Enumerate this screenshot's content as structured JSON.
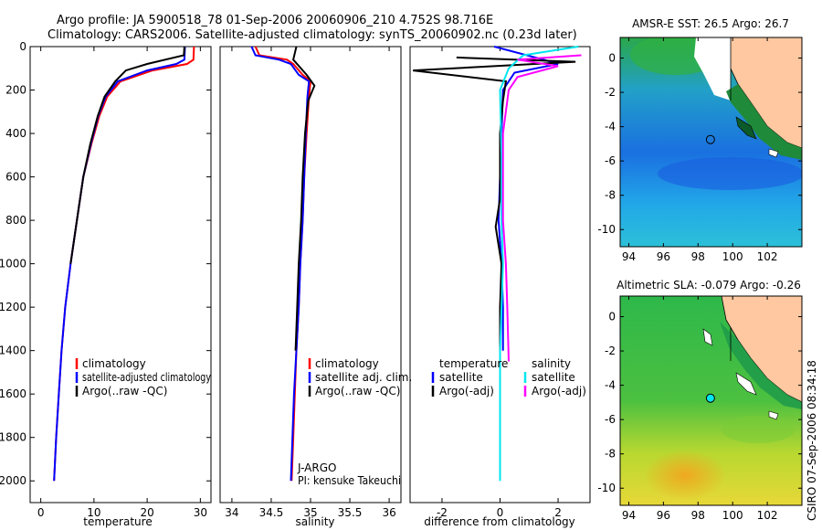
{
  "title": {
    "line1": "Argo profile: JA 5900518_78 01-Sep-2006 20060906_210 4.752S 98.716E",
    "line2": "Climatology: CARS2006. Satellite-adjusted climatology: synTS_20060902.nc (0.23d later)"
  },
  "colors": {
    "clim": "#ff0000",
    "sat": "#0000ff",
    "argo": "#000000",
    "cyan": "#00e5ee",
    "magenta": "#ff00ff",
    "land": "#ffc8a0"
  },
  "chart_data": [
    {
      "type": "line",
      "id": "temperature",
      "xlabel": "temperature",
      "ylabel": "",
      "xlim": [
        -2,
        32
      ],
      "ylim": [
        2100,
        0
      ],
      "xticks": [
        0,
        10,
        20,
        30
      ],
      "yticks": [
        0,
        200,
        400,
        600,
        800,
        1000,
        1200,
        1400,
        1600,
        1800,
        2000
      ],
      "legend": [
        "climatology",
        "satellite-adjusted climatology",
        "Argo(..raw -QC)"
      ],
      "series": [
        {
          "name": "climatology",
          "color": "#ff0000",
          "points": [
            [
              28.8,
              0
            ],
            [
              28.7,
              60
            ],
            [
              27.5,
              80
            ],
            [
              21,
              110
            ],
            [
              15,
              160
            ],
            [
              12.5,
              230
            ],
            [
              11,
              320
            ],
            [
              9.5,
              450
            ],
            [
              8,
              600
            ],
            [
              6.8,
              800
            ],
            [
              5.6,
              1000
            ],
            [
              4.6,
              1200
            ],
            [
              3.9,
              1400
            ],
            [
              3.4,
              1600
            ],
            [
              2.9,
              1800
            ],
            [
              2.5,
              2000
            ]
          ]
        },
        {
          "name": "satellite-adjusted climatology",
          "color": "#0000ff",
          "points": [
            [
              27.1,
              0
            ],
            [
              27,
              60
            ],
            [
              25.5,
              80
            ],
            [
              20,
              110
            ],
            [
              14.5,
              160
            ],
            [
              12.2,
              230
            ],
            [
              10.8,
              320
            ],
            [
              9.4,
              450
            ],
            [
              8,
              600
            ],
            [
              6.8,
              800
            ],
            [
              5.6,
              1000
            ],
            [
              4.6,
              1200
            ],
            [
              3.9,
              1400
            ],
            [
              3.4,
              1600
            ],
            [
              2.9,
              1800
            ],
            [
              2.5,
              2000
            ]
          ]
        },
        {
          "name": "Argo(..raw -QC)",
          "color": "#000000",
          "points": [
            [
              27,
              0
            ],
            [
              26.9,
              40
            ],
            [
              20,
              80
            ],
            [
              16,
              110
            ],
            [
              14,
              160
            ],
            [
              12,
              230
            ],
            [
              10.7,
              320
            ],
            [
              9.3,
              450
            ],
            [
              8,
              600
            ],
            [
              6.8,
              800
            ],
            [
              5.6,
              1000
            ]
          ]
        }
      ]
    },
    {
      "type": "line",
      "id": "salinity",
      "xlabel": "salinity",
      "ylabel": "",
      "xlim": [
        33.85,
        36.15
      ],
      "ylim": [
        2100,
        0
      ],
      "xticks": [
        34,
        34.5,
        35,
        35.5,
        36
      ],
      "yticks": [],
      "legend": [
        "climatology",
        "satellite adj. clim.",
        "Argo(..raw -QC)"
      ],
      "annotations": [
        "J-ARGO",
        "PI: kensuke Takeuchi"
      ],
      "series": [
        {
          "name": "climatology",
          "color": "#ff0000",
          "points": [
            [
              34.3,
              0
            ],
            [
              34.35,
              40
            ],
            [
              34.7,
              60
            ],
            [
              34.78,
              80
            ],
            [
              34.9,
              130
            ],
            [
              35.0,
              160
            ],
            [
              34.98,
              230
            ],
            [
              34.95,
              400
            ],
            [
              34.92,
              600
            ],
            [
              34.9,
              800
            ],
            [
              34.87,
              1000
            ],
            [
              34.85,
              1200
            ],
            [
              34.82,
              1400
            ],
            [
              34.8,
              1600
            ],
            [
              34.78,
              1800
            ],
            [
              34.76,
              2000
            ]
          ]
        },
        {
          "name": "satellite adj. clim.",
          "color": "#0000ff",
          "points": [
            [
              34.25,
              0
            ],
            [
              34.3,
              40
            ],
            [
              34.6,
              60
            ],
            [
              34.75,
              80
            ],
            [
              34.85,
              130
            ],
            [
              34.98,
              160
            ],
            [
              34.96,
              230
            ],
            [
              34.94,
              400
            ],
            [
              34.92,
              600
            ],
            [
              34.9,
              800
            ],
            [
              34.87,
              1000
            ],
            [
              34.85,
              1200
            ],
            [
              34.82,
              1400
            ],
            [
              34.79,
              1600
            ],
            [
              34.77,
              1800
            ],
            [
              34.75,
              2000
            ]
          ]
        },
        {
          "name": "Argo(..raw -QC)",
          "color": "#000000",
          "points": [
            [
              34.82,
              0
            ],
            [
              34.78,
              60
            ],
            [
              34.95,
              130
            ],
            [
              35.05,
              180
            ],
            [
              34.97,
              250
            ],
            [
              34.93,
              400
            ],
            [
              34.9,
              600
            ],
            [
              34.88,
              800
            ],
            [
              34.85,
              1000
            ],
            [
              34.83,
              1200
            ],
            [
              34.81,
              1400
            ]
          ]
        }
      ]
    },
    {
      "type": "line",
      "id": "difference",
      "xlabel": "difference from climatology",
      "ylabel": "",
      "xlim": [
        -3.1,
        3.1
      ],
      "ylim": [
        2100,
        0
      ],
      "xticks": [
        -2,
        0,
        2
      ],
      "yticks": [],
      "legend_left_title": "temperature",
      "legend_right_title": "salinity",
      "legend": [
        "satellite",
        "Argo(-adj)",
        "satellite",
        "Argo(-adj)"
      ],
      "series": [
        {
          "name": "temperature satellite",
          "color": "#0000ff",
          "points": [
            [
              -0.2,
              0
            ],
            [
              1.5,
              60
            ],
            [
              2,
              80
            ],
            [
              0.5,
              120
            ],
            [
              0.1,
              200
            ],
            [
              0.05,
              400
            ],
            [
              0,
              600
            ],
            [
              -0.05,
              800
            ],
            [
              0.05,
              1000
            ],
            [
              0.1,
              1200
            ],
            [
              0.1,
              1400
            ]
          ]
        },
        {
          "name": "temperature Argo(-adj)",
          "color": "#000000",
          "points": [
            [
              -1.5,
              50
            ],
            [
              2.6,
              70
            ],
            [
              -3,
              110
            ],
            [
              0.2,
              160
            ],
            [
              0.1,
              250
            ],
            [
              0,
              400
            ],
            [
              0,
              700
            ],
            [
              -0.15,
              830
            ],
            [
              0.05,
              1000
            ],
            [
              0,
              1200
            ],
            [
              0,
              1400
            ]
          ]
        },
        {
          "name": "salinity satellite",
          "color": "#00e5ee",
          "points": [
            [
              2.7,
              0
            ],
            [
              0.8,
              40
            ],
            [
              0.3,
              100
            ],
            [
              0,
              200
            ],
            [
              0.05,
              500
            ],
            [
              0.05,
              800
            ],
            [
              0.1,
              1000
            ],
            [
              0,
              1400
            ],
            [
              0,
              1800
            ],
            [
              0,
              2000
            ]
          ]
        },
        {
          "name": "salinity Argo(-adj)",
          "color": "#ff00ff",
          "points": [
            [
              2.8,
              40
            ],
            [
              0.6,
              60
            ],
            [
              2,
              90
            ],
            [
              0.6,
              140
            ],
            [
              0.3,
              200
            ],
            [
              0.1,
              400
            ],
            [
              0.1,
              800
            ],
            [
              0.2,
              1000
            ],
            [
              0.25,
              1200
            ],
            [
              0.3,
              1450
            ]
          ]
        }
      ]
    },
    {
      "type": "heatmap",
      "id": "sst_map",
      "title": "AMSR-E SST: 26.5 Argo: 26.7",
      "xlim": [
        93.5,
        104
      ],
      "ylim": [
        -11,
        1.2
      ],
      "xticks": [
        94,
        96,
        98,
        100,
        102
      ],
      "yticks": [
        0,
        -2,
        -4,
        -6,
        -8,
        -10
      ],
      "argo_position": [
        98.716,
        -4.752
      ]
    },
    {
      "type": "heatmap",
      "id": "sla_map",
      "title": "Altimetric SLA: -0.079 Argo: -0.26",
      "xlim": [
        93.5,
        104
      ],
      "ylim": [
        -11,
        1.2
      ],
      "xticks": [
        94,
        96,
        98,
        100,
        102
      ],
      "yticks": [
        0,
        -2,
        -4,
        -6,
        -8,
        -10
      ],
      "argo_position": [
        98.716,
        -4.752
      ]
    }
  ],
  "footer": {
    "stamp": "CSIRO 07-Sep-2006 08:34:18"
  }
}
